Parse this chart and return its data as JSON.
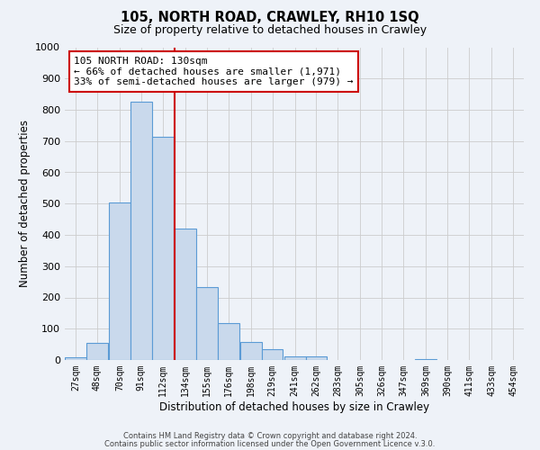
{
  "title": "105, NORTH ROAD, CRAWLEY, RH10 1SQ",
  "subtitle": "Size of property relative to detached houses in Crawley",
  "xlabel": "Distribution of detached houses by size in Crawley",
  "ylabel": "Number of detached properties",
  "bin_labels": [
    "27sqm",
    "48sqm",
    "70sqm",
    "91sqm",
    "112sqm",
    "134sqm",
    "155sqm",
    "176sqm",
    "198sqm",
    "219sqm",
    "241sqm",
    "262sqm",
    "283sqm",
    "305sqm",
    "326sqm",
    "347sqm",
    "369sqm",
    "390sqm",
    "411sqm",
    "433sqm",
    "454sqm"
  ],
  "bar_values": [
    10,
    55,
    505,
    825,
    715,
    420,
    233,
    118,
    57,
    35,
    12,
    12,
    0,
    0,
    0,
    0,
    3,
    0,
    0,
    0,
    0
  ],
  "bar_color": "#c9d9ec",
  "bar_edge_color": "#5b9bd5",
  "vline_x": 134,
  "vline_color": "#cc0000",
  "annotation_title": "105 NORTH ROAD: 130sqm",
  "annotation_line1": "← 66% of detached houses are smaller (1,971)",
  "annotation_line2": "33% of semi-detached houses are larger (979) →",
  "annotation_box_color": "#ffffff",
  "annotation_box_edge": "#cc0000",
  "ylim": [
    0,
    1000
  ],
  "yticks": [
    0,
    100,
    200,
    300,
    400,
    500,
    600,
    700,
    800,
    900,
    1000
  ],
  "grid_color": "#cccccc",
  "background_color": "#eef2f8",
  "footer1": "Contains HM Land Registry data © Crown copyright and database right 2024.",
  "footer2": "Contains public sector information licensed under the Open Government Licence v.3.0."
}
